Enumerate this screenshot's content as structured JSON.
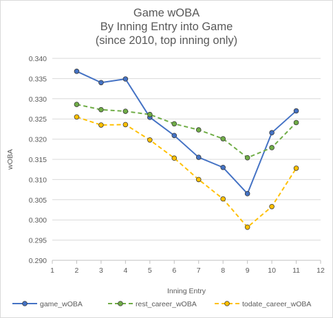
{
  "chart_data": {
    "type": "line",
    "title_lines": [
      "Game wOBA",
      "By Inning Entry into Game",
      "(since 2010, top inning only)"
    ],
    "xlabel": "Inning Entry",
    "ylabel": "wOBA",
    "xlim": [
      1,
      12
    ],
    "ylim": [
      0.29,
      0.34
    ],
    "x_ticks": [
      "1",
      "2",
      "3",
      "4",
      "5",
      "6",
      "7",
      "8",
      "9",
      "10",
      "11",
      "12"
    ],
    "y_ticks": [
      "0.290",
      "0.295",
      "0.300",
      "0.305",
      "0.310",
      "0.315",
      "0.320",
      "0.325",
      "0.330",
      "0.335",
      "0.340"
    ],
    "grid": "horizontal",
    "legend_position": "bottom",
    "x": [
      2,
      3,
      4,
      5,
      6,
      7,
      8,
      9,
      10,
      11
    ],
    "series": [
      {
        "name": "game_wOBA",
        "color": "#4472c4",
        "style": "solid",
        "values": [
          0.3368,
          0.334,
          0.3349,
          0.3254,
          0.3209,
          0.3155,
          0.313,
          0.3065,
          0.3216,
          0.327
        ]
      },
      {
        "name": "rest_career_wOBA",
        "color": "#70ad47",
        "style": "dashed",
        "values": [
          0.3286,
          0.3273,
          0.3269,
          0.3261,
          0.3238,
          0.3223,
          0.3201,
          0.3154,
          0.3179,
          0.3241
        ]
      },
      {
        "name": "todate_career_wOBA",
        "color": "#ffc000",
        "style": "dashed",
        "values": [
          0.3255,
          0.3235,
          0.3236,
          0.3198,
          0.3153,
          0.31,
          0.3052,
          0.2982,
          0.3033,
          0.3128
        ]
      }
    ]
  }
}
